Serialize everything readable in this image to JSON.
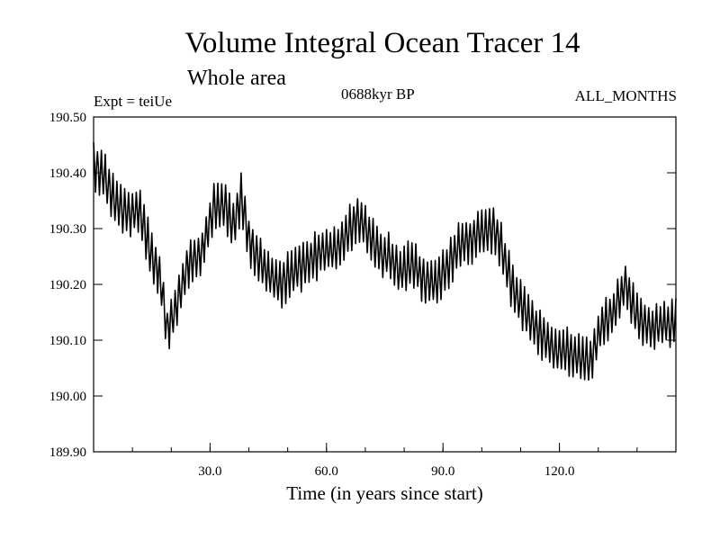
{
  "chart_data": {
    "type": "line",
    "title": "Volume Integral Ocean Tracer 14",
    "subtitle": "Whole area",
    "left_label": "Expt = teiUe",
    "center_label": "0688kyr BP",
    "right_label": "ALL_MONTHS",
    "xlabel": "Time (in years since start)",
    "ylabel": "",
    "xlim": [
      0,
      150
    ],
    "ylim": [
      189.9,
      190.5
    ],
    "xticks": [
      30,
      60,
      90,
      120
    ],
    "xtick_labels": [
      "30.0",
      "60.0",
      "90.0",
      "120.0"
    ],
    "xminor_step": 10,
    "yticks": [
      189.9,
      190.0,
      190.1,
      190.2,
      190.3,
      190.4,
      190.5
    ],
    "ytick_labels": [
      "189.90",
      "190.00",
      "190.10",
      "190.20",
      "190.30",
      "190.40",
      "190.50"
    ],
    "grid": false,
    "seasonal_amplitude": 0.035,
    "series": [
      {
        "name": "Volume Integral Ocean Tracer 14",
        "trend": {
          "x": [
            0,
            3,
            6,
            9,
            12,
            15,
            17,
            19,
            21,
            24,
            28,
            31,
            34,
            36,
            38,
            40,
            43,
            46,
            48,
            51,
            54,
            57,
            60,
            63,
            66,
            68,
            70,
            73,
            76,
            79,
            82,
            85,
            88,
            91,
            94,
            97,
            100,
            103,
            105,
            108,
            112,
            116,
            120,
            123,
            126,
            128,
            131,
            134,
            137,
            140,
            143,
            146,
            150
          ],
          "y": [
            190.415,
            190.39,
            190.34,
            190.33,
            190.33,
            190.25,
            190.22,
            190.12,
            190.15,
            190.23,
            190.26,
            190.34,
            190.34,
            190.3,
            190.36,
            190.28,
            190.24,
            190.21,
            190.2,
            190.22,
            190.23,
            190.25,
            190.26,
            190.27,
            190.3,
            190.32,
            190.3,
            190.26,
            190.25,
            190.22,
            190.24,
            190.21,
            190.2,
            190.23,
            190.27,
            190.28,
            190.29,
            190.3,
            190.27,
            190.19,
            190.14,
            190.1,
            190.08,
            190.08,
            190.07,
            190.06,
            190.13,
            190.15,
            190.2,
            190.14,
            190.12,
            190.13,
            190.13
          ]
        }
      }
    ]
  }
}
